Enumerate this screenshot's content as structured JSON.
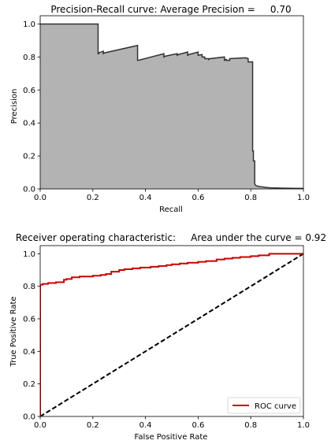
{
  "chart_data": [
    {
      "type": "area",
      "title": "Precision-Recall curve: Average Precision =     0.70",
      "xlabel": "Recall",
      "ylabel": "Precision",
      "xlim": [
        0,
        1
      ],
      "ylim": [
        0,
        1.05
      ],
      "xticks": [
        "0.0",
        "0.2",
        "0.4",
        "0.6",
        "0.8",
        "1.0"
      ],
      "yticks": [
        "0.0",
        "0.2",
        "0.4",
        "0.6",
        "0.8",
        "1.0"
      ],
      "fill_color": "#b3b3b3",
      "line_color": "#333333",
      "grid": false,
      "series": [
        {
          "x": [
            0.0,
            0.22,
            0.22,
            0.222,
            0.222,
            0.24,
            0.24,
            0.245,
            0.37,
            0.37,
            0.373,
            0.47,
            0.47,
            0.475,
            0.52,
            0.52,
            0.525,
            0.56,
            0.56,
            0.565,
            0.6,
            0.6,
            0.615,
            0.615,
            0.625,
            0.625,
            0.64,
            0.64,
            0.645,
            0.7,
            0.7,
            0.705,
            0.707,
            0.707,
            0.72,
            0.72,
            0.78,
            0.79,
            0.79,
            0.807,
            0.807,
            0.81,
            0.81,
            0.815,
            0.815,
            0.82,
            0.83,
            0.87,
            0.92,
            1.0
          ],
          "y": [
            1.0,
            1.0,
            0.82,
            0.82,
            0.825,
            0.835,
            0.82,
            0.825,
            0.87,
            0.78,
            0.78,
            0.82,
            0.8,
            0.805,
            0.82,
            0.81,
            0.815,
            0.83,
            0.81,
            0.815,
            0.83,
            0.81,
            0.815,
            0.8,
            0.8,
            0.79,
            0.79,
            0.785,
            0.79,
            0.8,
            0.78,
            0.785,
            0.785,
            0.78,
            0.78,
            0.79,
            0.795,
            0.79,
            0.77,
            0.77,
            0.23,
            0.23,
            0.17,
            0.17,
            0.03,
            0.02,
            0.015,
            0.007,
            0.005,
            0.003
          ]
        }
      ]
    },
    {
      "type": "line",
      "title": "Receiver operating characteristic:     Area under the curve = 0.92",
      "xlabel": "False Positive Rate",
      "ylabel": "True Positive Rate",
      "xlim": [
        0,
        1
      ],
      "ylim": [
        0,
        1.05
      ],
      "xticks": [
        "0.0",
        "0.2",
        "0.4",
        "0.6",
        "0.8",
        "1.0"
      ],
      "yticks": [
        "0.0",
        "0.2",
        "0.4",
        "0.6",
        "0.8",
        "1.0"
      ],
      "grid": false,
      "legend": "lower-right",
      "series": [
        {
          "name": "ROC curve",
          "color": "#cc0000",
          "x": [
            0.0,
            0.0,
            0.01,
            0.02,
            0.03,
            0.06,
            0.09,
            0.1,
            0.12,
            0.15,
            0.18,
            0.2,
            0.23,
            0.25,
            0.27,
            0.3,
            0.32,
            0.35,
            0.38,
            0.42,
            0.45,
            0.48,
            0.5,
            0.53,
            0.56,
            0.6,
            0.63,
            0.67,
            0.7,
            0.73,
            0.76,
            0.8,
            0.83,
            0.87,
            0.9,
            0.95,
            1.0
          ],
          "y": [
            0.0,
            0.81,
            0.815,
            0.815,
            0.82,
            0.825,
            0.84,
            0.845,
            0.855,
            0.86,
            0.86,
            0.865,
            0.87,
            0.875,
            0.89,
            0.9,
            0.905,
            0.91,
            0.915,
            0.92,
            0.925,
            0.93,
            0.935,
            0.94,
            0.945,
            0.95,
            0.955,
            0.965,
            0.97,
            0.975,
            0.98,
            0.985,
            0.99,
            1.0,
            1.0,
            1.0,
            1.0
          ]
        },
        {
          "name": "",
          "color": "#000000",
          "dashed": true,
          "x": [
            0,
            1
          ],
          "y": [
            0,
            1
          ]
        }
      ]
    }
  ]
}
